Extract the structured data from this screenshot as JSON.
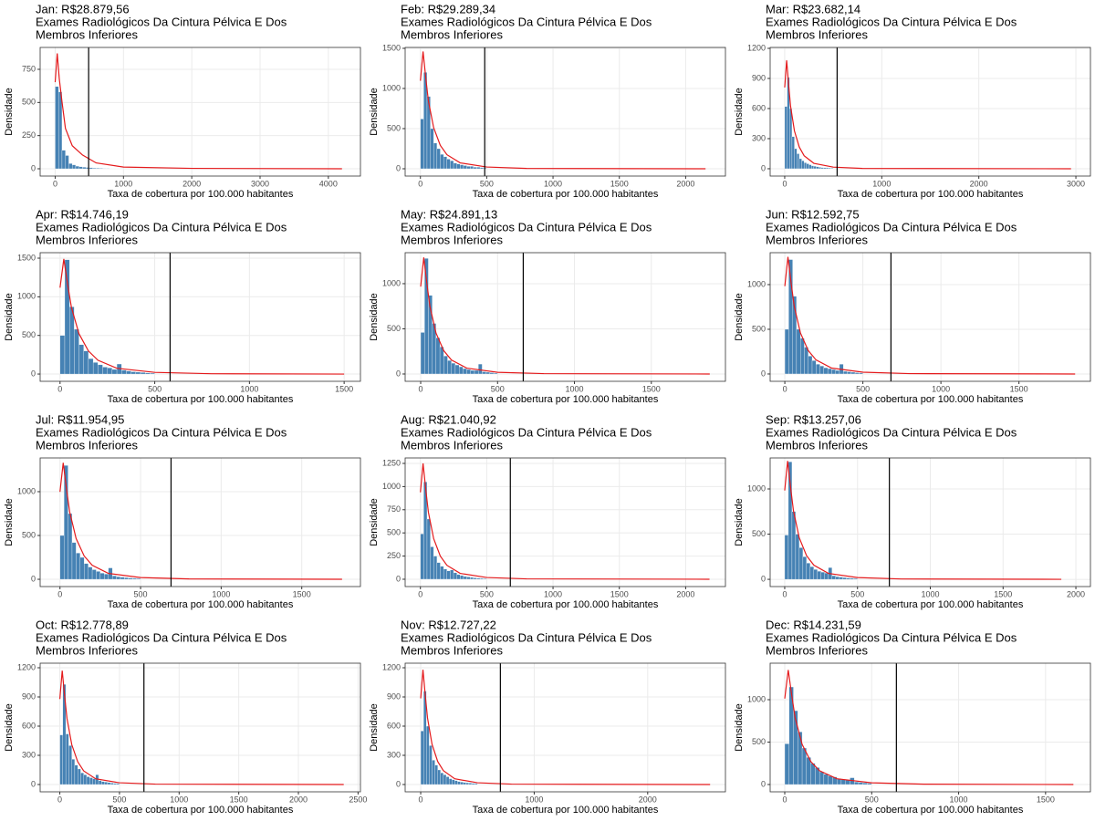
{
  "chart_data": [
    {
      "type": "histogram",
      "title": [
        "Jan: R$28.879,56",
        "Exames Radiológicos Da Cintura Pélvica E Dos",
        "Membros Inferiores"
      ],
      "xlabel": "Taxa de cobertura por 100.000 habitantes",
      "ylabel": "Densidade",
      "color": "#4682b4",
      "bins": [
        0,
        50,
        100,
        150,
        200,
        250,
        300,
        350,
        400,
        450,
        500,
        550,
        600,
        650,
        700,
        750,
        800,
        850,
        900,
        950,
        1000
      ],
      "counts": [
        620,
        580,
        140,
        100,
        40,
        30,
        20,
        15,
        12,
        10,
        8,
        6,
        5,
        4,
        3,
        3,
        2,
        2,
        2,
        1
      ],
      "density": {
        "color": "#e41a1c",
        "x": [
          0,
          30,
          60,
          100,
          150,
          250,
          400,
          600,
          1000,
          2000,
          4200
        ],
        "values": [
          653,
          870,
          679,
          505,
          305,
          174,
          104,
          44,
          13,
          3,
          0
        ]
      },
      "vline": 490,
      "vline_color": "#000000",
      "xlim": [
        -220,
        4470
      ],
      "ylim": [
        -55,
        915
      ],
      "xticks": [
        0,
        1000,
        2000,
        3000,
        4000
      ],
      "yticks": [
        0,
        250,
        500,
        750
      ],
      "grid": true
    },
    {
      "type": "histogram",
      "title": [
        "Feb: R$29.289,34",
        "Exames Radiológicos Da Cintura Pélvica E Dos",
        "Membros Inferiores"
      ],
      "xlabel": "Taxa de cobertura por 100.000 habitantes",
      "ylabel": "Densidade",
      "color": "#4682b4",
      "bins": [
        0,
        25,
        50,
        75,
        100,
        125,
        150,
        175,
        200,
        225,
        250,
        275,
        300,
        325,
        350,
        375,
        400,
        425,
        450,
        475,
        500
      ],
      "counts": [
        620,
        1200,
        900,
        500,
        320,
        250,
        180,
        150,
        120,
        100,
        70,
        60,
        50,
        40,
        30,
        30,
        20,
        20,
        15,
        10
      ],
      "density": {
        "color": "#e41a1c",
        "x": [
          0,
          20,
          40,
          60,
          100,
          150,
          200,
          300,
          500,
          800,
          2150
        ],
        "values": [
          1095,
          1460,
          1139,
          847,
          511,
          292,
          175,
          73,
          22,
          4,
          0
        ]
      },
      "vline": 485,
      "vline_color": "#000000",
      "xlim": [
        -115,
        2300
      ],
      "ylim": [
        -91,
        1511
      ],
      "xticks": [
        0,
        500,
        1000,
        1500,
        2000
      ],
      "yticks": [
        0,
        500,
        1000,
        1500
      ],
      "grid": true
    },
    {
      "type": "histogram",
      "title": [
        "Mar: R$23.682,14",
        "Exames Radiológicos Da Cintura Pélvica E Dos",
        "Membros Inferiores"
      ],
      "xlabel": "Taxa de cobertura por 100.000 habitantes",
      "ylabel": "Densidade",
      "color": "#4682b4",
      "bins": [
        0,
        25,
        50,
        75,
        100,
        125,
        150,
        175,
        200,
        225,
        250,
        275,
        300,
        325,
        350,
        375,
        400,
        425,
        450,
        475,
        500
      ],
      "counts": [
        620,
        910,
        600,
        320,
        200,
        150,
        100,
        80,
        60,
        50,
        40,
        30,
        25,
        20,
        15,
        12,
        10,
        10,
        8,
        6
      ],
      "density": {
        "color": "#e41a1c",
        "x": [
          0,
          20,
          40,
          60,
          100,
          150,
          200,
          300,
          500,
          800,
          2950
        ],
        "values": [
          810,
          1080,
          842,
          626,
          378,
          216,
          130,
          54,
          16,
          3,
          0
        ]
      },
      "vline": 540,
      "vline_color": "#000000",
      "xlim": [
        -150,
        3150
      ],
      "ylim": [
        -73,
        1209
      ],
      "xticks": [
        0,
        1000,
        2000,
        3000
      ],
      "yticks": [
        0,
        300,
        600,
        900,
        1200
      ],
      "grid": true
    },
    {
      "type": "histogram",
      "title": [
        "Apr: R$14.746,19",
        "Exames Radiológicos Da Cintura Pélvica E Dos",
        "Membros Inferiores"
      ],
      "xlabel": "Taxa de cobertura por 100.000 habitantes",
      "ylabel": "Densidade",
      "color": "#4682b4",
      "bins": [
        0,
        25,
        50,
        75,
        100,
        125,
        150,
        175,
        200,
        225,
        250,
        275,
        300,
        325,
        350,
        375,
        400,
        425,
        450,
        475,
        500
      ],
      "counts": [
        500,
        1480,
        870,
        580,
        380,
        300,
        200,
        150,
        120,
        90,
        80,
        60,
        130,
        50,
        40,
        30,
        25,
        20,
        15,
        12
      ],
      "density": {
        "color": "#e41a1c",
        "x": [
          0,
          20,
          40,
          60,
          100,
          150,
          200,
          300,
          500,
          800,
          1500
        ],
        "values": [
          1118,
          1490,
          1162,
          864,
          522,
          298,
          179,
          75,
          22,
          4,
          0
        ]
      },
      "vline": 581,
      "vline_color": "#000000",
      "xlim": [
        -105,
        1586
      ],
      "ylim": [
        -94,
        1571
      ],
      "xticks": [
        0,
        500,
        1000,
        1500
      ],
      "yticks": [
        0,
        500,
        1000,
        1500
      ],
      "grid": true
    },
    {
      "type": "histogram",
      "title": [
        "May: R$24.891,13",
        "Exames Radiológicos Da Cintura Pélvica E Dos",
        "Membros Inferiores"
      ],
      "xlabel": "Taxa de cobertura por 100.000 habitantes",
      "ylabel": "Densidade",
      "color": "#4682b4",
      "bins": [
        0,
        25,
        50,
        75,
        100,
        125,
        150,
        175,
        200,
        225,
        250,
        275,
        300,
        325,
        350,
        375,
        400,
        425,
        450,
        475,
        500
      ],
      "counts": [
        460,
        1280,
        870,
        560,
        400,
        300,
        200,
        150,
        120,
        100,
        80,
        60,
        50,
        40,
        40,
        110,
        25,
        20,
        15,
        10
      ],
      "density": {
        "color": "#e41a1c",
        "x": [
          0,
          20,
          40,
          60,
          100,
          150,
          200,
          300,
          500,
          800,
          1880
        ],
        "values": [
          968,
          1290,
          1006,
          748,
          452,
          258,
          155,
          65,
          19,
          4,
          0
        ]
      },
      "vline": 667,
      "vline_color": "#000000",
      "xlim": [
        -101,
        1982
      ],
      "ylim": [
        -81,
        1343
      ],
      "xticks": [
        0,
        500,
        1000,
        1500
      ],
      "yticks": [
        0,
        500,
        1000
      ],
      "grid": true
    },
    {
      "type": "histogram",
      "title": [
        "Jun: R$12.592,75",
        "Exames Radiológicos Da Cintura Pélvica E Dos",
        "Membros Inferiores"
      ],
      "xlabel": "Taxa de cobertura por 100.000 habitantes",
      "ylabel": "Densidade",
      "color": "#4682b4",
      "bins": [
        0,
        25,
        50,
        75,
        100,
        125,
        150,
        175,
        200,
        225,
        250,
        275,
        300,
        325,
        350,
        375,
        400,
        425,
        450,
        475,
        500
      ],
      "counts": [
        500,
        1280,
        870,
        500,
        400,
        300,
        200,
        150,
        110,
        90,
        70,
        60,
        50,
        40,
        110,
        30,
        25,
        20,
        15,
        12
      ],
      "density": {
        "color": "#e41a1c",
        "x": [
          0,
          20,
          40,
          60,
          100,
          150,
          200,
          300,
          500,
          800,
          1860
        ],
        "values": [
          983,
          1310,
          1022,
          760,
          459,
          262,
          157,
          66,
          20,
          4,
          0
        ]
      },
      "vline": 680,
      "vline_color": "#000000",
      "xlim": [
        -94,
        1958
      ],
      "ylim": [
        -82,
        1357
      ],
      "xticks": [
        0,
        500,
        1000,
        1500
      ],
      "yticks": [
        0,
        500,
        1000
      ],
      "grid": true
    },
    {
      "type": "histogram",
      "title": [
        "Jul: R$11.954,95",
        "Exames Radiológicos Da Cintura Pélvica E Dos",
        "Membros Inferiores"
      ],
      "xlabel": "Taxa de cobertura por 100.000 habitantes",
      "ylabel": "Densidade",
      "color": "#4682b4",
      "bins": [
        0,
        25,
        50,
        75,
        100,
        125,
        150,
        175,
        200,
        225,
        250,
        275,
        300,
        325,
        350,
        375,
        400,
        425,
        450,
        475,
        500
      ],
      "counts": [
        500,
        1300,
        750,
        420,
        300,
        250,
        180,
        140,
        110,
        90,
        70,
        60,
        130,
        40,
        30,
        25,
        20,
        15,
        12,
        10
      ],
      "density": {
        "color": "#e41a1c",
        "x": [
          0,
          20,
          40,
          60,
          100,
          150,
          200,
          300,
          500,
          800,
          1750
        ],
        "values": [
          998,
          1330,
          1037,
          771,
          466,
          266,
          160,
          67,
          20,
          4,
          0
        ]
      },
      "vline": 689,
      "vline_color": "#000000",
      "xlim": [
        -123,
        1864
      ],
      "ylim": [
        -83,
        1385
      ],
      "xticks": [
        0,
        500,
        1000,
        1500
      ],
      "yticks": [
        0,
        500,
        1000
      ],
      "grid": true
    },
    {
      "type": "histogram",
      "title": [
        "Aug: R$21.040,92",
        "Exames Radiológicos Da Cintura Pélvica E Dos",
        "Membros Inferiores"
      ],
      "xlabel": "Taxa de cobertura por 100.000 habitantes",
      "ylabel": "Densidade",
      "color": "#4682b4",
      "bins": [
        0,
        25,
        50,
        75,
        100,
        125,
        150,
        175,
        200,
        225,
        250,
        275,
        300,
        325,
        350,
        375,
        400,
        425,
        450,
        475,
        500
      ],
      "counts": [
        490,
        1050,
        650,
        350,
        250,
        180,
        140,
        110,
        90,
        100,
        70,
        50,
        40,
        30,
        25,
        20,
        15,
        12,
        10,
        8
      ],
      "density": {
        "color": "#e41a1c",
        "x": [
          0,
          20,
          40,
          60,
          100,
          150,
          200,
          300,
          500,
          800,
          2180
        ],
        "values": [
          938,
          1250,
          975,
          725,
          438,
          250,
          150,
          63,
          19,
          4,
          0
        ]
      },
      "vline": 678,
      "vline_color": "#000000",
      "xlim": [
        -115,
        2300
      ],
      "ylim": [
        -79,
        1309
      ],
      "xticks": [
        0,
        500,
        1000,
        1500,
        2000
      ],
      "yticks": [
        0,
        250,
        500,
        750,
        1000,
        1250
      ],
      "grid": true
    },
    {
      "type": "histogram",
      "title": [
        "Sep: R$13.257,06",
        "Exames Radiológicos Da Cintura Pélvica E Dos",
        "Membros Inferiores"
      ],
      "xlabel": "Taxa de cobertura por 100.000 habitantes",
      "ylabel": "Densidade",
      "color": "#4682b4",
      "bins": [
        0,
        25,
        50,
        75,
        100,
        125,
        150,
        175,
        200,
        225,
        250,
        275,
        300,
        325,
        350,
        375,
        400,
        425,
        450,
        475,
        500
      ],
      "counts": [
        490,
        1300,
        750,
        500,
        350,
        250,
        180,
        140,
        110,
        90,
        80,
        70,
        130,
        40,
        30,
        25,
        20,
        15,
        12,
        10
      ],
      "density": {
        "color": "#e41a1c",
        "x": [
          0,
          20,
          40,
          60,
          100,
          150,
          200,
          300,
          500,
          800,
          1900
        ],
        "values": [
          983,
          1310,
          1022,
          760,
          459,
          262,
          157,
          66,
          20,
          4,
          0
        ]
      },
      "vline": 719,
      "vline_color": "#000000",
      "xlim": [
        -100,
        2100
      ],
      "ylim": [
        -80,
        1343
      ],
      "xticks": [
        0,
        500,
        1000,
        1500,
        2000
      ],
      "yticks": [
        0,
        500,
        1000
      ],
      "grid": true
    },
    {
      "type": "histogram",
      "title": [
        "Oct: R$12.778,89",
        "Exames Radiológicos Da Cintura Pélvica E Dos",
        "Membros Inferiores"
      ],
      "xlabel": "Taxa de cobertura por 100.000 habitantes",
      "ylabel": "Densidade",
      "color": "#4682b4",
      "bins": [
        0,
        25,
        50,
        75,
        100,
        125,
        150,
        175,
        200,
        225,
        250,
        275,
        300,
        325,
        350,
        375,
        400,
        425,
        450,
        475,
        500
      ],
      "counts": [
        510,
        1030,
        520,
        400,
        260,
        200,
        160,
        120,
        100,
        80,
        70,
        60,
        100,
        40,
        30,
        25,
        20,
        15,
        12,
        10
      ],
      "density": {
        "color": "#e41a1c",
        "x": [
          0,
          20,
          40,
          60,
          100,
          150,
          200,
          300,
          500,
          800,
          2380
        ],
        "values": [
          878,
          1170,
          913,
          679,
          410,
          234,
          140,
          59,
          18,
          4,
          0
        ]
      },
      "vline": 705,
      "vline_color": "#000000",
      "xlim": [
        -165,
        2520
      ],
      "ylim": [
        -75,
        1247
      ],
      "xticks": [
        0,
        500,
        1000,
        1500,
        2000,
        2500
      ],
      "yticks": [
        0,
        300,
        600,
        900,
        1200
      ],
      "grid": true
    },
    {
      "type": "histogram",
      "title": [
        "Nov: R$12.727,22",
        "Exames Radiológicos Da Cintura Pélvica E Dos",
        "Membros Inferiores"
      ],
      "xlabel": "Taxa de cobertura por 100.000 habitantes",
      "ylabel": "Densidade",
      "color": "#4682b4",
      "bins": [
        0,
        25,
        50,
        75,
        100,
        125,
        150,
        175,
        200,
        225,
        250,
        275,
        300,
        325,
        350,
        375,
        400,
        425,
        450,
        475,
        500
      ],
      "counts": [
        550,
        960,
        600,
        400,
        250,
        200,
        150,
        120,
        100,
        80,
        60,
        50,
        40,
        30,
        25,
        20,
        18,
        15,
        12,
        10
      ],
      "density": {
        "color": "#e41a1c",
        "x": [
          0,
          20,
          40,
          60,
          100,
          150,
          200,
          300,
          500,
          800,
          2550
        ],
        "values": [
          885,
          1180,
          920,
          684,
          413,
          236,
          142,
          59,
          18,
          4,
          0
        ]
      },
      "vline": 702,
      "vline_color": "#000000",
      "xlim": [
        -137,
        2685
      ],
      "ylim": [
        -75,
        1247
      ],
      "xticks": [
        0,
        1000,
        2000
      ],
      "yticks": [
        0,
        300,
        600,
        900,
        1200
      ],
      "grid": true
    },
    {
      "type": "histogram",
      "title": [
        "Dec: R$14.231,59",
        "Exames Radiológicos Da Cintura Pélvica E Dos",
        "Membros Inferiores"
      ],
      "xlabel": "Taxa de cobertura por 100.000 habitantes",
      "ylabel": "Densidade",
      "color": "#4682b4",
      "bins": [
        0,
        25,
        50,
        75,
        100,
        125,
        150,
        175,
        200,
        225,
        250,
        275,
        300,
        325,
        350,
        375,
        400,
        425,
        450,
        475,
        500
      ],
      "counts": [
        480,
        1150,
        870,
        620,
        430,
        320,
        250,
        200,
        150,
        120,
        100,
        90,
        70,
        60,
        50,
        80,
        30,
        25,
        20,
        15
      ],
      "density": {
        "color": "#e41a1c",
        "x": [
          0,
          20,
          40,
          60,
          100,
          150,
          200,
          300,
          500,
          800,
          1660
        ],
        "values": [
          1013,
          1350,
          1053,
          783,
          473,
          270,
          162,
          68,
          20,
          4,
          0
        ]
      },
      "vline": 642,
      "vline_color": "#000000",
      "xlim": [
        -84,
        1758
      ],
      "ylim": [
        -86,
        1430
      ],
      "xticks": [
        0,
        500,
        1000,
        1500
      ],
      "yticks": [
        0,
        500,
        1000
      ],
      "grid": true
    }
  ]
}
